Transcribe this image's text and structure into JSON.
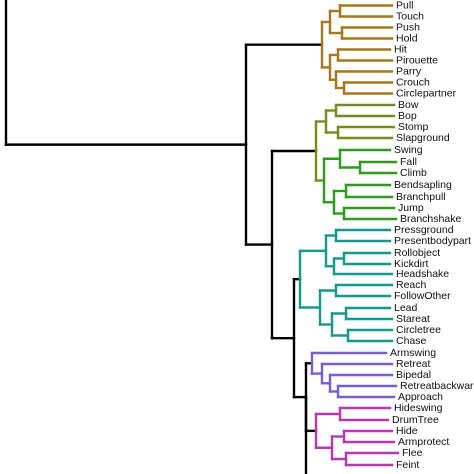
{
  "colors": {
    "root": "#000000",
    "gold": "#A6761D",
    "olive": "#7A8B1E",
    "green": "#2E9A1F",
    "teal": "#16998C",
    "purple": "#7B5FC9",
    "magenta": "#B838B0"
  },
  "leaves": [
    {
      "label": "Pull",
      "group": "gold"
    },
    {
      "label": "Touch",
      "group": "gold"
    },
    {
      "label": "Push",
      "group": "gold"
    },
    {
      "label": "Hold",
      "group": "gold"
    },
    {
      "label": "Hit",
      "group": "gold"
    },
    {
      "label": "Pirouette",
      "group": "gold"
    },
    {
      "label": "Parry",
      "group": "gold"
    },
    {
      "label": "Crouch",
      "group": "gold"
    },
    {
      "label": "Circlepartner",
      "group": "gold"
    },
    {
      "label": "Bow",
      "group": "olive"
    },
    {
      "label": "Bop",
      "group": "olive"
    },
    {
      "label": "Stomp",
      "group": "olive"
    },
    {
      "label": "Slapground",
      "group": "olive"
    },
    {
      "label": "Swing",
      "group": "green"
    },
    {
      "label": "Fall",
      "group": "green"
    },
    {
      "label": "Climb",
      "group": "green"
    },
    {
      "label": "Bendsapling",
      "group": "green"
    },
    {
      "label": "Branchpull",
      "group": "green"
    },
    {
      "label": "Jump",
      "group": "green"
    },
    {
      "label": "Branchshake",
      "group": "green"
    },
    {
      "label": "Pressground",
      "group": "teal"
    },
    {
      "label": "Presentbodypart",
      "group": "teal"
    },
    {
      "label": "Rollobject",
      "group": "teal"
    },
    {
      "label": "Kickdirt",
      "group": "teal"
    },
    {
      "label": "Headshake",
      "group": "teal"
    },
    {
      "label": "Reach",
      "group": "teal"
    },
    {
      "label": "FollowOther",
      "group": "teal"
    },
    {
      "label": "Lead",
      "group": "teal"
    },
    {
      "label": "Stareat",
      "group": "teal"
    },
    {
      "label": "Circletree",
      "group": "teal"
    },
    {
      "label": "Chase",
      "group": "teal"
    },
    {
      "label": "Armswing",
      "group": "purple"
    },
    {
      "label": "Retreat",
      "group": "purple"
    },
    {
      "label": "Bipedal",
      "group": "purple"
    },
    {
      "label": "Retreatbackwards",
      "group": "purple"
    },
    {
      "label": "Approach",
      "group": "purple"
    },
    {
      "label": "Hideswing",
      "group": "magenta"
    },
    {
      "label": "DrumTree",
      "group": "magenta"
    },
    {
      "label": "Hide",
      "group": "magenta"
    },
    {
      "label": "Armprotect",
      "group": "magenta"
    },
    {
      "label": "Flee",
      "group": "magenta"
    },
    {
      "label": "Feint",
      "group": "magenta"
    }
  ]
}
